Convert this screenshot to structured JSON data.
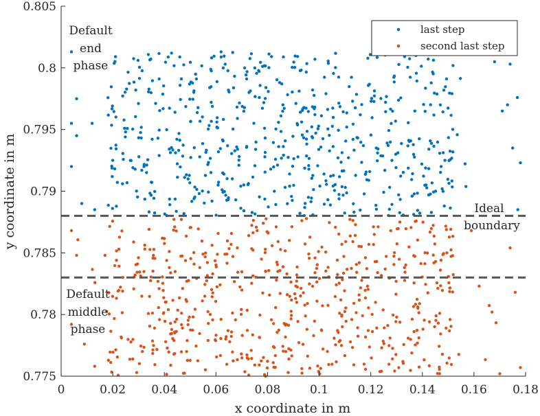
{
  "chart_data": {
    "type": "scatter",
    "title": "",
    "xlabel": "x coordinate in m",
    "ylabel": "y coordinate in m",
    "xlim": [
      0,
      0.18
    ],
    "ylim": [
      0.775,
      0.805
    ],
    "xticks": [
      "0",
      "0.02",
      "0.04",
      "0.06",
      "0.08",
      "0.1",
      "0.12",
      "0.14",
      "0.16",
      "0.18"
    ],
    "yticks": [
      "0.775",
      "0.78",
      "0.785",
      "0.79",
      "0.795",
      "0.8",
      "0.805"
    ],
    "xtick_values": [
      0,
      0.02,
      0.04,
      0.06,
      0.08,
      0.1,
      0.12,
      0.14,
      0.16,
      0.18
    ],
    "ytick_values": [
      0.775,
      0.78,
      0.785,
      0.79,
      0.795,
      0.8,
      0.805
    ],
    "grid": false,
    "legend_position": "top-right",
    "series": [
      {
        "name": "last step",
        "color": "#0072BD",
        "approx_count": 600,
        "x_range": [
          0.003,
          0.178
        ],
        "y_range": [
          0.788,
          0.8013
        ],
        "dense_x_range": [
          0.018,
          0.152
        ],
        "sample_points": [
          [
            0.004,
            0.8013
          ],
          [
            0.006,
            0.7975
          ],
          [
            0.004,
            0.7955
          ],
          [
            0.006,
            0.7945
          ],
          [
            0.004,
            0.792
          ],
          [
            0.008,
            0.789
          ],
          [
            0.012,
            0.7955
          ],
          [
            0.013,
            0.7885
          ],
          [
            0.02,
            0.7925
          ],
          [
            0.062,
            0.8013
          ],
          [
            0.15,
            0.8013
          ],
          [
            0.168,
            0.8005
          ],
          [
            0.174,
            0.8003
          ],
          [
            0.171,
            0.7965
          ],
          [
            0.173,
            0.797
          ],
          [
            0.175,
            0.7935
          ],
          [
            0.177,
            0.7885
          ],
          [
            0.178,
            0.7923
          ]
        ]
      },
      {
        "name": "second last step",
        "color": "#D95319",
        "approx_count": 600,
        "x_range": [
          0.003,
          0.178
        ],
        "y_range": [
          0.775,
          0.7878
        ],
        "dense_x_range": [
          0.018,
          0.152
        ],
        "sample_points": [
          [
            0.004,
            0.7868
          ],
          [
            0.006,
            0.7848
          ],
          [
            0.009,
            0.7776
          ],
          [
            0.013,
            0.7758
          ],
          [
            0.017,
            0.7848
          ],
          [
            0.004,
            0.7792
          ],
          [
            0.159,
            0.7868
          ],
          [
            0.162,
            0.7823
          ],
          [
            0.167,
            0.7802
          ],
          [
            0.17,
            0.7752
          ],
          [
            0.174,
            0.7854
          ],
          [
            0.176,
            0.7818
          ],
          [
            0.178,
            0.7757
          ]
        ]
      }
    ],
    "annotations": [
      {
        "lines": [
          "Default",
          "end",
          "phase"
        ]
      },
      {
        "lines": [
          "Ideal",
          "boundary"
        ]
      },
      {
        "lines": [
          "Default",
          "middle",
          "phase"
        ]
      }
    ],
    "reference_lines": [
      {
        "orientation": "horizontal",
        "y": 0.788,
        "style": "dashed",
        "color": "#555555"
      },
      {
        "orientation": "horizontal",
        "y": 0.783,
        "style": "dashed",
        "color": "#555555"
      }
    ]
  }
}
